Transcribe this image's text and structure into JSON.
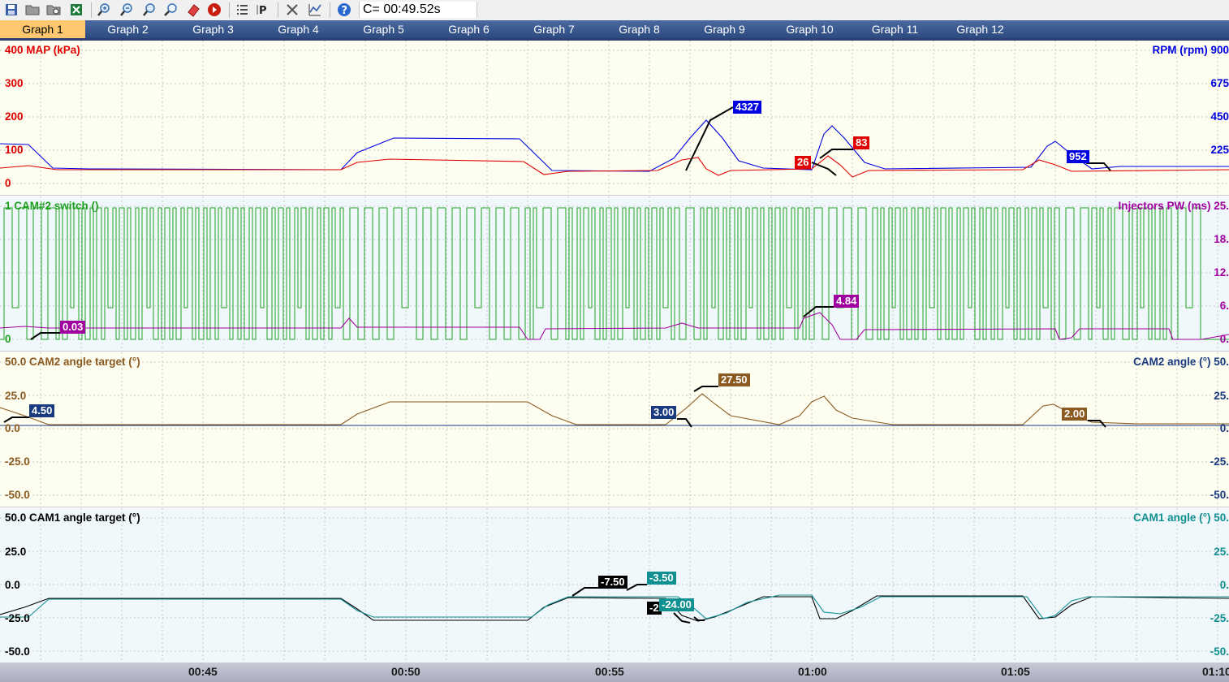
{
  "toolbar": {
    "buttons": [
      {
        "icon": "save-icon",
        "color": "#3a5ea8"
      },
      {
        "icon": "open-folder-icon",
        "color": "#888888"
      },
      {
        "icon": "open-recent-icon",
        "color": "#888888"
      },
      {
        "icon": "export-excel-icon",
        "color": "#1e7b3a"
      },
      {
        "icon": "zoom-in-icon",
        "color": "#3a70b0"
      },
      {
        "icon": "zoom-out-icon",
        "color": "#3a70b0"
      },
      {
        "icon": "zoom-fit-icon",
        "color": "#3a70b0"
      },
      {
        "icon": "zoom-reset-icon",
        "color": "#3a70b0"
      },
      {
        "icon": "eraser-icon",
        "color": "#d02020"
      },
      {
        "icon": "record-icon",
        "color": "#d02020"
      },
      {
        "icon": "list-icon",
        "color": "#333333"
      },
      {
        "icon": "parameter-icon",
        "color": "#333333"
      },
      {
        "icon": "tools-icon",
        "color": "#555555"
      },
      {
        "icon": "chart-settings-icon",
        "color": "#3a5ea8"
      },
      {
        "icon": "help-icon",
        "color": "#2a6ad0"
      }
    ],
    "cursor_readout": "C= 00:49.52s"
  },
  "tabs": [
    "Graph 1",
    "Graph 2",
    "Graph 3",
    "Graph 4",
    "Graph 5",
    "Graph 6",
    "Graph 7",
    "Graph 8",
    "Graph 9",
    "Graph 10",
    "Graph 11",
    "Graph 12"
  ],
  "active_tab": "Graph 1",
  "panels": [
    {
      "left_label": "400 MAP (kPa)",
      "left_color": "#e00000",
      "right_label": "RPM (rpm) 900",
      "right_color": "#0000e0",
      "left_ticks": [
        "300",
        "200",
        "100",
        "0"
      ],
      "right_ticks": [
        "675",
        "450",
        "225"
      ],
      "background": "#fdfdf0",
      "tags": [
        {
          "text": "4327",
          "color": "#0000e0"
        },
        {
          "text": "26",
          "color": "#e00000"
        },
        {
          "text": "83",
          "color": "#e00000"
        },
        {
          "text": "952",
          "color": "#0000e0"
        }
      ]
    },
    {
      "left_label": "1 CAM#2 switch ()",
      "left_color": "#20a020",
      "right_label": "Injectors PW (ms) 25.",
      "right_color": "#a000a0",
      "left_ticks": [
        "0"
      ],
      "right_ticks": [
        "18.",
        "12.",
        "6.",
        "0."
      ],
      "background": "#f0f8fc",
      "tags": [
        {
          "text": "0.03",
          "color": "#a000a0"
        },
        {
          "text": "4.84",
          "color": "#a000a0"
        }
      ]
    },
    {
      "left_label": "50.0 CAM2 angle target (°)",
      "left_color": "#8b5a20",
      "right_label": "CAM2 angle (°) 50.",
      "right_color": "#1a3a80",
      "left_ticks": [
        "25.0",
        "0.0",
        "-25.0",
        "-50.0"
      ],
      "right_ticks": [
        "25.",
        "0.",
        "-25.",
        "-50."
      ],
      "background": "#fdfdf0",
      "tags": [
        {
          "text": "4.50",
          "color": "#1a3a80"
        },
        {
          "text": "3.00",
          "color": "#1a3a80"
        },
        {
          "text": "27.50",
          "color": "#8b5a20"
        },
        {
          "text": "2.00",
          "color": "#8b5a20"
        }
      ]
    },
    {
      "left_label": "50.0 CAM1 angle target (°)",
      "left_color": "#000000",
      "right_label": "CAM1 angle (°) 50.",
      "right_color": "#109090",
      "left_ticks": [
        "25.0",
        "0.0",
        "-25.0",
        "-50.0"
      ],
      "right_ticks": [
        "25.",
        "0.",
        "-25.",
        "-50."
      ],
      "background": "#f0f8fc",
      "tags": [
        {
          "text": "-7.50",
          "color": "#000000"
        },
        {
          "text": "-3.50",
          "color": "#109090"
        },
        {
          "text": "-2",
          "color": "#000000"
        },
        {
          "text": "-24.00",
          "color": "#109090"
        }
      ]
    }
  ],
  "time_axis": [
    "00:45",
    "00:50",
    "00:55",
    "01:00",
    "01:05",
    "01:10"
  ]
}
